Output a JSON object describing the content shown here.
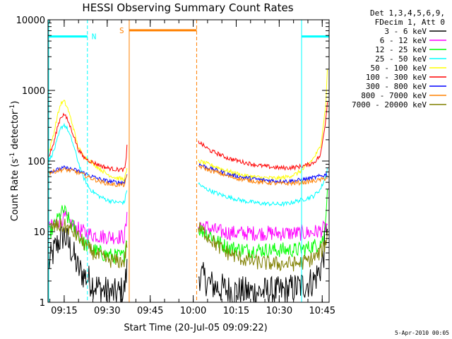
{
  "chart_data": {
    "type": "line",
    "title": "HESSI Observing Summary Count Rates",
    "xlabel": "Start Time (20-Jul-05 09:09:22)",
    "ylabel": "Count Rate (s",
    "ylabel_mid": " detector",
    "ylabel_end": ")",
    "ylabel_sup": "-1",
    "yscale": "log",
    "ylim": [
      1,
      10000
    ],
    "xlim": [
      9.156,
      10.79
    ],
    "xticks": [
      {
        "t": 9.25,
        "label": "09:15"
      },
      {
        "t": 9.5,
        "label": "09:30"
      },
      {
        "t": 9.75,
        "label": "09:45"
      },
      {
        "t": 10.0,
        "label": "10:00"
      },
      {
        "t": 10.25,
        "label": "10:15"
      },
      {
        "t": 10.5,
        "label": "10:30"
      },
      {
        "t": 10.75,
        "label": "10:45"
      }
    ],
    "yticks": [
      {
        "v": 1,
        "label": "1"
      },
      {
        "v": 10,
        "label": "10"
      },
      {
        "v": 100,
        "label": "100"
      },
      {
        "v": 1000,
        "label": "1000"
      },
      {
        "v": 10000,
        "label": "10000"
      }
    ],
    "legend_header": [
      "Det 1,3,4,5,6,9,",
      "FDecim 1, Att 0"
    ],
    "legend_position": "right",
    "footer": "5-Apr-2010 00:05",
    "flags": [
      {
        "label": "N",
        "start": 9.156,
        "end": 9.385,
        "level": 5800,
        "color": "#00ffff"
      },
      {
        "label": "S",
        "start": 9.628,
        "end": 10.02,
        "level": 7100,
        "color": "#ff8000"
      },
      {
        "label": "",
        "start": 10.63,
        "end": 10.79,
        "level": 5800,
        "color": "#00ffff"
      }
    ],
    "markers": [
      {
        "t": 9.16,
        "color": "#00ffff",
        "style": "solid"
      },
      {
        "t": 9.385,
        "color": "#00ffff",
        "style": "dashed"
      },
      {
        "t": 9.628,
        "color": "#ff8000",
        "style": "solid"
      },
      {
        "t": 10.02,
        "color": "#ff8000",
        "style": "dashed"
      },
      {
        "t": 10.63,
        "color": "#00ffff",
        "style": "solid"
      },
      {
        "t": 10.79,
        "color": "#00ffff",
        "style": "dashed"
      }
    ],
    "series": [
      {
        "name": "3 - 6 keV",
        "color": "#000000",
        "segments": [
          {
            "x": [
              9.16,
              9.2,
              9.23,
              9.25,
              9.27,
              9.3,
              9.33,
              9.36,
              9.4,
              9.45,
              9.5,
              9.55,
              9.6,
              9.615
            ],
            "y": [
              3.5,
              6,
              8,
              9,
              7,
              5,
              3,
              2.5,
              2,
              1.6,
              1.4,
              1.3,
              1.5,
              3
            ]
          },
          {
            "x": [
              10.03,
              10.06,
              10.1,
              10.15,
              10.2,
              10.3,
              10.4,
              10.5,
              10.55,
              10.6,
              10.65,
              10.7,
              10.74,
              10.76,
              10.78
            ],
            "y": [
              2.5,
              2.2,
              1.8,
              1.6,
              1.5,
              1.4,
              1.4,
              1.4,
              1.5,
              1.6,
              1.8,
              2,
              3,
              5,
              15
            ]
          }
        ]
      },
      {
        "name": "6 - 12 keV",
        "color": "#ff00ff",
        "segments": [
          {
            "x": [
              9.16,
              9.2,
              9.23,
              9.25,
              9.28,
              9.3,
              9.34,
              9.38,
              9.42,
              9.48,
              9.54,
              9.6,
              9.615
            ],
            "y": [
              11,
              13,
              15,
              16,
              14,
              12,
              10.5,
              9.5,
              9,
              8.5,
              8.5,
              8.5,
              15
            ]
          },
          {
            "x": [
              10.03,
              10.06,
              10.1,
              10.15,
              10.25,
              10.35,
              10.45,
              10.55,
              10.65,
              10.72,
              10.76,
              10.78
            ],
            "y": [
              13,
              12,
              11,
              10,
              9.5,
              9.5,
              9.5,
              9.5,
              9.5,
              10,
              11,
              13
            ]
          }
        ]
      },
      {
        "name": "12 - 25 keV",
        "color": "#00ff00",
        "segments": [
          {
            "x": [
              9.16,
              9.2,
              9.23,
              9.25,
              9.28,
              9.32,
              9.36,
              9.42,
              9.48,
              9.54,
              9.6,
              9.615
            ],
            "y": [
              9,
              13,
              18,
              20,
              14,
              10,
              7,
              5.5,
              4.8,
              4.5,
              4.5,
              9
            ]
          },
          {
            "x": [
              10.03,
              10.06,
              10.1,
              10.15,
              10.2,
              10.3,
              10.4,
              10.5,
              10.6,
              10.66,
              10.72,
              10.76,
              10.78
            ],
            "y": [
              11,
              10,
              9,
              7,
              6,
              5.5,
              5.5,
              5.5,
              5.5,
              5.8,
              6.5,
              8,
              40
            ]
          }
        ]
      },
      {
        "name": "25 - 50 keV",
        "color": "#00ffff",
        "segments": [
          {
            "x": [
              9.16,
              9.19,
              9.21,
              9.23,
              9.25,
              9.27,
              9.3,
              9.33,
              9.36,
              9.4,
              9.45,
              9.5,
              9.55,
              9.6,
              9.615
            ],
            "y": [
              100,
              140,
              200,
              290,
              330,
              280,
              180,
              100,
              60,
              40,
              32,
              28,
              26,
              26,
              40
            ]
          },
          {
            "x": [
              10.03,
              10.06,
              10.1,
              10.15,
              10.2,
              10.3,
              10.4,
              10.5,
              10.55,
              10.6,
              10.65,
              10.7,
              10.74,
              10.77,
              10.78
            ],
            "y": [
              48,
              42,
              38,
              34,
              31,
              27,
              25,
              24.5,
              25,
              27,
              29,
              32,
              40,
              60,
              80
            ]
          }
        ]
      },
      {
        "name": "50 - 100 keV",
        "color": "#ffff00",
        "segments": [
          {
            "x": [
              9.16,
              9.19,
              9.21,
              9.23,
              9.25,
              9.27,
              9.3,
              9.33,
              9.36,
              9.4,
              9.45,
              9.5,
              9.55,
              9.6,
              9.615
            ],
            "y": [
              130,
              250,
              430,
              650,
              700,
              560,
              320,
              160,
              120,
              100,
              80,
              65,
              58,
              55,
              75
            ]
          },
          {
            "x": [
              10.03,
              10.06,
              10.1,
              10.15,
              10.2,
              10.3,
              10.4,
              10.5,
              10.55,
              10.6,
              10.65,
              10.7,
              10.74,
              10.77,
              10.78
            ],
            "y": [
              100,
              95,
              88,
              80,
              72,
              62,
              58,
              57,
              60,
              66,
              80,
              110,
              160,
              600,
              2000
            ]
          }
        ]
      },
      {
        "name": "100 - 300 keV",
        "color": "#ff0000",
        "segments": [
          {
            "x": [
              9.16,
              9.19,
              9.21,
              9.23,
              9.25,
              9.27,
              9.3,
              9.33,
              9.36,
              9.4,
              9.45,
              9.5,
              9.55,
              9.6,
              9.61,
              9.615
            ],
            "y": [
              115,
              180,
              300,
              420,
              460,
              380,
              250,
              150,
              115,
              100,
              88,
              80,
              76,
              75,
              100,
              160
            ]
          },
          {
            "x": [
              10.03,
              10.06,
              10.1,
              10.15,
              10.2,
              10.3,
              10.4,
              10.5,
              10.55,
              10.6,
              10.65,
              10.7,
              10.74,
              10.77,
              10.78
            ],
            "y": [
              190,
              165,
              140,
              125,
              110,
              95,
              85,
              80,
              80,
              82,
              86,
              95,
              120,
              380,
              700
            ]
          }
        ]
      },
      {
        "name": "300 - 800 keV",
        "color": "#0000ff",
        "segments": [
          {
            "x": [
              9.16,
              9.2,
              9.25,
              9.3,
              9.35,
              9.4,
              9.45,
              9.5,
              9.55,
              9.6,
              9.615
            ],
            "y": [
              70,
              74,
              80,
              76,
              70,
              62,
              56,
              52,
              50,
              50,
              65
            ]
          },
          {
            "x": [
              10.03,
              10.06,
              10.1,
              10.15,
              10.2,
              10.3,
              10.4,
              10.5,
              10.55,
              10.6,
              10.65,
              10.7,
              10.75,
              10.78
            ],
            "y": [
              90,
              85,
              78,
              72,
              65,
              58,
              54,
              52,
              52,
              53,
              55,
              58,
              62,
              65
            ]
          }
        ]
      },
      {
        "name": "800 - 7000 keV",
        "color": "#ff8000",
        "segments": [
          {
            "x": [
              9.16,
              9.2,
              9.25,
              9.3,
              9.35,
              9.4,
              9.45,
              9.5,
              9.55,
              9.6,
              9.615
            ],
            "y": [
              68,
              72,
              76,
              72,
              66,
              58,
              52,
              48,
              46,
              46,
              60
            ]
          },
          {
            "x": [
              10.03,
              10.06,
              10.1,
              10.15,
              10.2,
              10.3,
              10.4,
              10.5,
              10.55,
              10.6,
              10.65,
              10.7,
              10.75,
              10.78
            ],
            "y": [
              85,
              80,
              73,
              68,
              61,
              54,
              50,
              48,
              48,
              49,
              50,
              52,
              55,
              58
            ]
          }
        ]
      },
      {
        "name": "7000 - 20000 keV",
        "color": "#808000",
        "segments": [
          {
            "x": [
              9.16,
              9.2,
              9.25,
              9.28,
              9.32,
              9.36,
              9.4,
              9.45,
              9.5,
              9.55,
              9.6,
              9.615
            ],
            "y": [
              11,
              12,
              12,
              11,
              9,
              7,
              5.5,
              4.5,
              4,
              3.8,
              3.8,
              7
            ]
          },
          {
            "x": [
              10.03,
              10.06,
              10.1,
              10.15,
              10.2,
              10.3,
              10.4,
              10.5,
              10.6,
              10.66,
              10.72,
              10.76,
              10.78
            ],
            "y": [
              11,
              10,
              8,
              6,
              5,
              4,
              3.6,
              3.5,
              3.5,
              3.8,
              4.5,
              6,
              9
            ]
          }
        ]
      }
    ]
  }
}
